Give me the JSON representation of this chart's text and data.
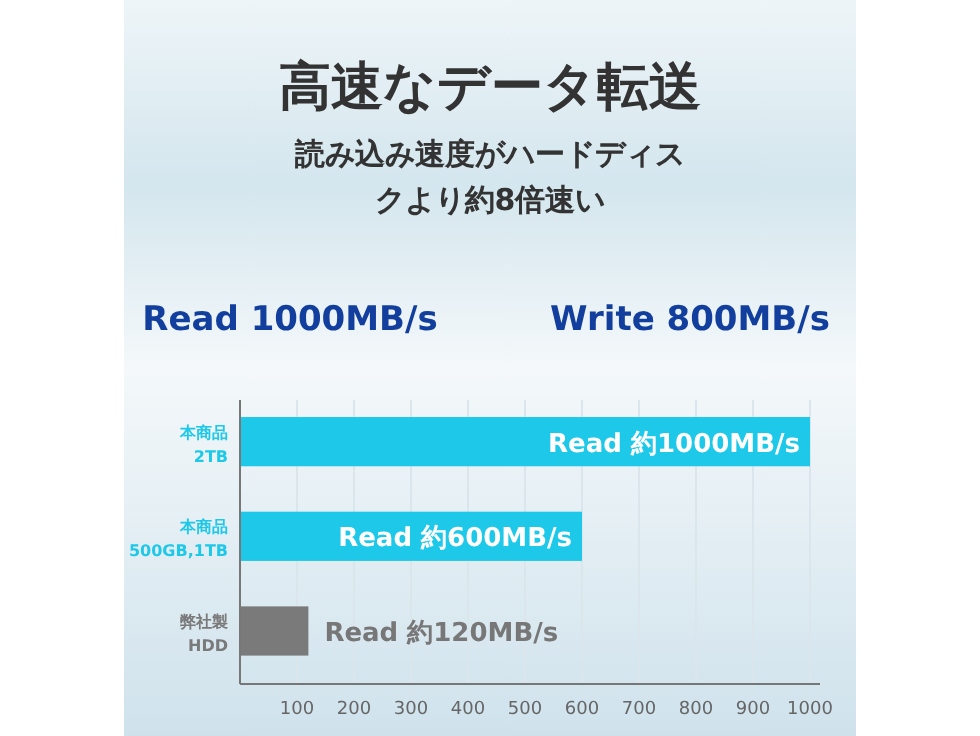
{
  "chart_data": {
    "type": "bar",
    "orientation": "horizontal",
    "title": "高速なデータ転送",
    "subtitle": "読み込み速度がハードディスクより約8倍速い",
    "annotations": [
      "Read 1000MB/s",
      "Write 800MB/s"
    ],
    "categories": [
      "本商品\n2TB",
      "本商品\n500GB,1TB",
      "弊社製\nHDD"
    ],
    "values": [
      1000,
      600,
      120
    ],
    "colors": [
      "#1ec8e8",
      "#1ec8e8",
      "#7a7a7a"
    ],
    "value_labels": [
      "Read 約1000MB/s",
      "Read 約600MB/s",
      "Read 約120MB/s"
    ],
    "xlim": [
      0,
      1000
    ],
    "xticks": [
      100,
      200,
      300,
      400,
      500,
      600,
      700,
      800,
      900,
      1000
    ],
    "grid": "x"
  }
}
